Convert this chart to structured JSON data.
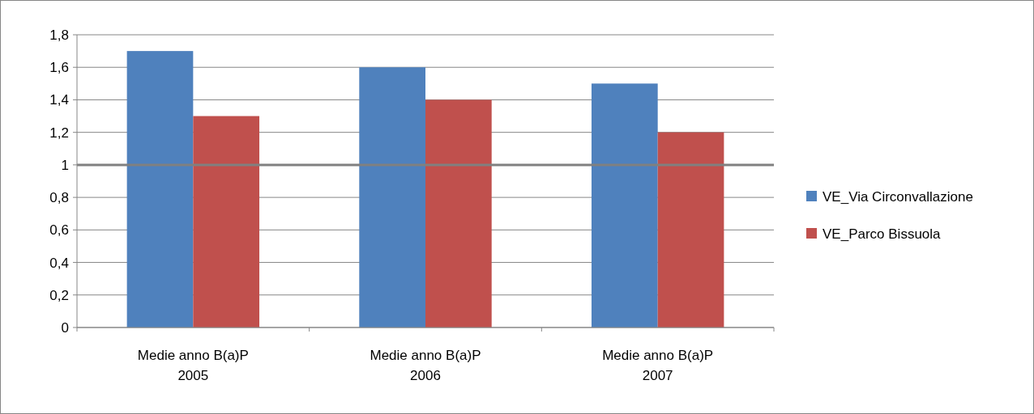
{
  "chart_data": {
    "type": "bar",
    "categories": [
      "Medie anno B(a)P\n2005",
      "Medie anno B(a)P\n2006",
      "Medie anno B(a)P\n2007"
    ],
    "series": [
      {
        "name": "VE_Via Circonvallazione",
        "color": "#4f81bd",
        "values": [
          1.7,
          1.6,
          1.5
        ]
      },
      {
        "name": "VE_Parco Bissuola",
        "color": "#c0504d",
        "values": [
          1.3,
          1.4,
          1.2
        ]
      }
    ],
    "ylim": [
      0,
      1.8
    ],
    "yticks": [
      0,
      {
        "value": 0.2,
        "label": "0,2"
      },
      {
        "value": 0.4,
        "label": "0,4"
      },
      {
        "value": 0.6,
        "label": "0,6"
      },
      {
        "value": 0.8,
        "label": "0,8"
      },
      1,
      {
        "value": 1.2,
        "label": "1,2"
      },
      {
        "value": 1.4,
        "label": "1,4"
      },
      {
        "value": 1.6,
        "label": "1,6"
      },
      {
        "value": 1.8,
        "label": "1,8"
      }
    ],
    "grid": "y",
    "legend": "right",
    "ref_lines": [
      {
        "axis": "y",
        "value": 1,
        "color": "#808080"
      }
    ]
  }
}
